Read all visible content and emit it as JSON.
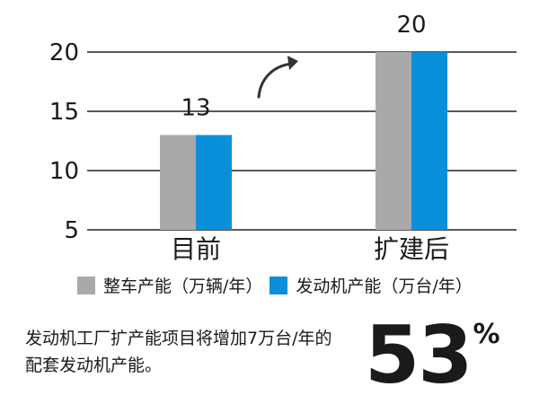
{
  "chart_data": {
    "type": "bar",
    "categories": [
      "目前",
      "扩建后"
    ],
    "series": [
      {
        "name": "整车产能（万辆/年）",
        "values": [
          13,
          20
        ],
        "color": "#a8a9aa"
      },
      {
        "name": "发动机产能（万台/年）",
        "values": [
          13,
          20
        ],
        "color": "#0a8fda"
      }
    ],
    "data_labels": [
      "13",
      "20"
    ],
    "yticks": [
      5,
      10,
      15,
      20
    ],
    "ylim": [
      5,
      20
    ],
    "grid": true,
    "legend_position": "bottom",
    "annotation_icon": "curved-up-arrow-icon"
  },
  "legend": {
    "items": [
      {
        "label": "整车产能（万辆/年）",
        "color": "#a8a9aa"
      },
      {
        "label": "发动机产能（万台/年）",
        "color": "#0a8fda"
      }
    ]
  },
  "note": "发动机工厂扩产能项目将增加7万台/年的配套发动机产能。",
  "highlight": {
    "value": "53",
    "unit": "%"
  }
}
